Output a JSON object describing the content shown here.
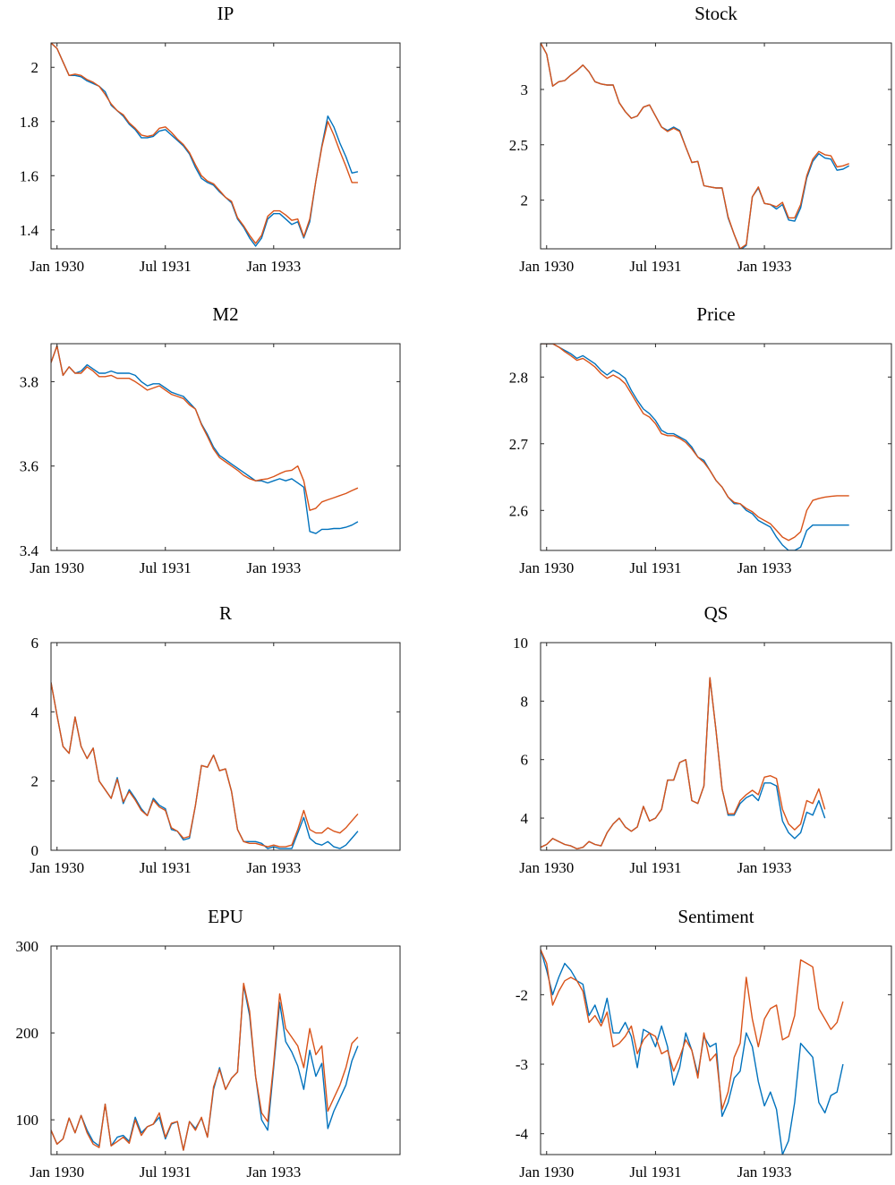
{
  "series_colors": {
    "series_1": "#0072BD",
    "series_2": "#D95319"
  },
  "chart_data": [
    {
      "type": "line",
      "title": "IP",
      "xlabel": "",
      "ylabel": "",
      "x_ticks": [
        "Jan 1930",
        "Jul 1931",
        "Jan 1933"
      ],
      "x_tick_index": [
        1,
        19,
        37
      ],
      "xlim": [
        0,
        58
      ],
      "ylim": [
        1.33,
        2.09
      ],
      "y_ticks": [
        "1.4",
        "1.6",
        "1.8",
        "2"
      ],
      "y_tick_values": [
        1.4,
        1.6,
        1.8,
        2.0
      ],
      "series": [
        {
          "values": [
            2.09,
            2.07,
            2.02,
            1.97,
            1.97,
            1.965,
            1.95,
            1.94,
            1.93,
            1.91,
            1.86,
            1.84,
            1.82,
            1.79,
            1.77,
            1.74,
            1.74,
            1.745,
            1.765,
            1.77,
            1.75,
            1.73,
            1.71,
            1.68,
            1.63,
            1.59,
            1.575,
            1.565,
            1.54,
            1.52,
            1.5,
            1.44,
            1.41,
            1.37,
            1.34,
            1.37,
            1.44,
            1.46,
            1.46,
            1.44,
            1.42,
            1.43,
            1.37,
            1.43,
            1.58,
            1.71,
            1.82,
            1.78,
            1.72,
            1.67,
            1.61,
            1.615
          ]
        },
        {
          "values": [
            2.09,
            2.07,
            2.02,
            1.97,
            1.975,
            1.97,
            1.955,
            1.945,
            1.93,
            1.9,
            1.865,
            1.84,
            1.825,
            1.795,
            1.775,
            1.75,
            1.745,
            1.75,
            1.775,
            1.78,
            1.76,
            1.735,
            1.715,
            1.685,
            1.64,
            1.6,
            1.58,
            1.57,
            1.545,
            1.52,
            1.505,
            1.445,
            1.415,
            1.38,
            1.35,
            1.38,
            1.45,
            1.47,
            1.47,
            1.455,
            1.435,
            1.44,
            1.375,
            1.44,
            1.58,
            1.705,
            1.8,
            1.75,
            1.69,
            1.635,
            1.575,
            1.575
          ]
        }
      ]
    },
    {
      "type": "line",
      "title": "Stock",
      "xlabel": "",
      "ylabel": "",
      "x_ticks": [
        "Jan 1930",
        "Jul 1931",
        "Jan 1933"
      ],
      "x_tick_index": [
        1,
        19,
        37
      ],
      "xlim": [
        0,
        58
      ],
      "ylim": [
        1.56,
        3.42
      ],
      "y_ticks": [
        "2",
        "2.5",
        "3"
      ],
      "y_tick_values": [
        2.0,
        2.5,
        3.0
      ],
      "series": [
        {
          "values": [
            3.42,
            3.32,
            3.03,
            3.07,
            3.08,
            3.13,
            3.17,
            3.22,
            3.16,
            3.07,
            3.05,
            3.04,
            3.04,
            2.88,
            2.8,
            2.74,
            2.76,
            2.84,
            2.86,
            2.76,
            2.66,
            2.63,
            2.66,
            2.63,
            2.48,
            2.34,
            2.35,
            2.13,
            2.12,
            2.11,
            2.11,
            1.84,
            1.69,
            1.55,
            1.59,
            2.03,
            2.11,
            1.97,
            1.96,
            1.92,
            1.96,
            1.82,
            1.81,
            1.93,
            2.2,
            2.35,
            2.42,
            2.38,
            2.37,
            2.27,
            2.28,
            2.31
          ]
        },
        {
          "values": [
            3.42,
            3.32,
            3.03,
            3.07,
            3.08,
            3.13,
            3.17,
            3.22,
            3.16,
            3.07,
            3.05,
            3.04,
            3.04,
            2.88,
            2.8,
            2.74,
            2.76,
            2.84,
            2.86,
            2.76,
            2.66,
            2.62,
            2.65,
            2.62,
            2.48,
            2.34,
            2.35,
            2.13,
            2.12,
            2.11,
            2.11,
            1.85,
            1.69,
            1.56,
            1.6,
            2.03,
            2.12,
            1.97,
            1.96,
            1.94,
            1.98,
            1.84,
            1.84,
            1.96,
            2.22,
            2.37,
            2.44,
            2.41,
            2.4,
            2.3,
            2.31,
            2.33
          ]
        }
      ]
    },
    {
      "type": "line",
      "title": "M2",
      "xlabel": "",
      "ylabel": "",
      "x_ticks": [
        "Jan 1930",
        "Jul 1931",
        "Jan 1933"
      ],
      "x_tick_index": [
        1,
        19,
        37
      ],
      "xlim": [
        0,
        58
      ],
      "ylim": [
        3.4,
        3.89
      ],
      "y_ticks": [
        "3.4",
        "3.6",
        "3.8"
      ],
      "y_tick_values": [
        3.4,
        3.6,
        3.8
      ],
      "series": [
        {
          "values": [
            3.845,
            3.885,
            3.815,
            3.835,
            3.82,
            3.825,
            3.84,
            3.83,
            3.82,
            3.82,
            3.825,
            3.82,
            3.82,
            3.82,
            3.815,
            3.8,
            3.79,
            3.795,
            3.795,
            3.785,
            3.775,
            3.77,
            3.765,
            3.75,
            3.735,
            3.7,
            3.675,
            3.645,
            3.625,
            3.615,
            3.605,
            3.595,
            3.585,
            3.575,
            3.565,
            3.565,
            3.56,
            3.565,
            3.57,
            3.565,
            3.57,
            3.56,
            3.55,
            3.445,
            3.44,
            3.45,
            3.45,
            3.452,
            3.452,
            3.455,
            3.46,
            3.468
          ]
        },
        {
          "values": [
            3.845,
            3.885,
            3.815,
            3.835,
            3.82,
            3.82,
            3.835,
            3.825,
            3.812,
            3.812,
            3.815,
            3.808,
            3.808,
            3.808,
            3.8,
            3.79,
            3.78,
            3.785,
            3.79,
            3.78,
            3.77,
            3.765,
            3.76,
            3.745,
            3.735,
            3.698,
            3.67,
            3.64,
            3.62,
            3.61,
            3.6,
            3.59,
            3.578,
            3.57,
            3.565,
            3.568,
            3.57,
            3.575,
            3.582,
            3.588,
            3.59,
            3.6,
            3.565,
            3.495,
            3.5,
            3.515,
            3.52,
            3.525,
            3.53,
            3.535,
            3.542,
            3.548
          ]
        }
      ]
    },
    {
      "type": "line",
      "title": "Price",
      "xlabel": "",
      "ylabel": "",
      "x_ticks": [
        "Jan 1930",
        "Jul 1931",
        "Jan 1933"
      ],
      "x_tick_index": [
        1,
        19,
        37
      ],
      "xlim": [
        0,
        58
      ],
      "ylim": [
        2.54,
        2.85
      ],
      "y_ticks": [
        "2.6",
        "2.7",
        "2.8"
      ],
      "y_tick_values": [
        2.6,
        2.7,
        2.8
      ],
      "series": [
        {
          "values": [
            2.85,
            2.85,
            2.85,
            2.845,
            2.84,
            2.835,
            2.828,
            2.832,
            2.826,
            2.82,
            2.81,
            2.803,
            2.81,
            2.805,
            2.798,
            2.78,
            2.765,
            2.752,
            2.745,
            2.735,
            2.72,
            2.715,
            2.715,
            2.71,
            2.705,
            2.695,
            2.68,
            2.675,
            2.66,
            2.645,
            2.635,
            2.62,
            2.61,
            2.61,
            2.6,
            2.595,
            2.585,
            2.58,
            2.575,
            2.56,
            2.548,
            2.54,
            2.54,
            2.545,
            2.57,
            2.578,
            2.578,
            2.578,
            2.578,
            2.578,
            2.578,
            2.578
          ]
        },
        {
          "values": [
            2.85,
            2.85,
            2.85,
            2.845,
            2.838,
            2.832,
            2.825,
            2.828,
            2.822,
            2.815,
            2.805,
            2.798,
            2.803,
            2.798,
            2.79,
            2.775,
            2.76,
            2.745,
            2.74,
            2.73,
            2.715,
            2.712,
            2.712,
            2.708,
            2.702,
            2.692,
            2.68,
            2.672,
            2.66,
            2.645,
            2.635,
            2.62,
            2.612,
            2.61,
            2.603,
            2.598,
            2.59,
            2.585,
            2.58,
            2.57,
            2.56,
            2.555,
            2.56,
            2.568,
            2.6,
            2.615,
            2.618,
            2.62,
            2.621,
            2.622,
            2.622,
            2.622
          ]
        }
      ]
    },
    {
      "type": "line",
      "title": "R",
      "xlabel": "",
      "ylabel": "",
      "x_ticks": [
        "Jan 1930",
        "Jul 1931",
        "Jan 1933"
      ],
      "x_tick_index": [
        1,
        19,
        37
      ],
      "xlim": [
        0,
        58
      ],
      "ylim": [
        0,
        6
      ],
      "y_ticks": [
        "0",
        "2",
        "4",
        "6"
      ],
      "y_tick_values": [
        0,
        2,
        4,
        6
      ],
      "series": [
        {
          "values": [
            4.85,
            3.9,
            3.0,
            2.8,
            3.85,
            3.0,
            2.65,
            2.95,
            2.0,
            1.75,
            1.5,
            2.1,
            1.35,
            1.75,
            1.5,
            1.2,
            1.0,
            1.5,
            1.3,
            1.2,
            0.6,
            0.55,
            0.3,
            0.35,
            1.3,
            2.45,
            2.4,
            2.75,
            2.3,
            2.35,
            1.7,
            0.6,
            0.25,
            0.25,
            0.25,
            0.2,
            0.05,
            0.1,
            0.05,
            0.05,
            0.05,
            0.5,
            0.95,
            0.35,
            0.2,
            0.15,
            0.25,
            0.1,
            0.05,
            0.15,
            0.35,
            0.55
          ]
        },
        {
          "values": [
            4.85,
            3.9,
            3.0,
            2.8,
            3.85,
            3.0,
            2.65,
            2.95,
            2.0,
            1.75,
            1.5,
            2.05,
            1.4,
            1.7,
            1.45,
            1.15,
            1.0,
            1.45,
            1.25,
            1.15,
            0.65,
            0.55,
            0.35,
            0.4,
            1.3,
            2.45,
            2.4,
            2.75,
            2.3,
            2.35,
            1.7,
            0.6,
            0.25,
            0.2,
            0.2,
            0.15,
            0.1,
            0.15,
            0.1,
            0.1,
            0.15,
            0.6,
            1.15,
            0.6,
            0.5,
            0.5,
            0.65,
            0.55,
            0.5,
            0.65,
            0.85,
            1.05
          ]
        }
      ]
    },
    {
      "type": "line",
      "title": "QS",
      "xlabel": "",
      "ylabel": "",
      "x_ticks": [
        "Jan 1930",
        "Jul 1931",
        "Jan 1933"
      ],
      "x_tick_index": [
        1,
        19,
        37
      ],
      "xlim": [
        0,
        58
      ],
      "ylim": [
        2.9,
        10
      ],
      "y_ticks": [
        "4",
        "6",
        "8",
        "10"
      ],
      "y_tick_values": [
        4,
        6,
        8,
        10
      ],
      "series": [
        {
          "values": [
            3.0,
            3.1,
            3.3,
            3.2,
            3.1,
            3.05,
            2.95,
            3.0,
            3.2,
            3.1,
            3.05,
            3.5,
            3.8,
            4.0,
            3.7,
            3.55,
            3.7,
            4.4,
            3.9,
            4.0,
            4.3,
            5.3,
            5.3,
            5.9,
            6.0,
            4.6,
            4.5,
            5.1,
            8.8,
            7.0,
            5.0,
            4.1,
            4.1,
            4.5,
            4.7,
            4.8,
            4.6,
            5.2,
            5.2,
            5.1,
            3.9,
            3.5,
            3.3,
            3.5,
            4.2,
            4.1,
            4.6,
            4.0
          ]
        },
        {
          "values": [
            3.0,
            3.1,
            3.3,
            3.2,
            3.1,
            3.05,
            2.95,
            3.0,
            3.2,
            3.1,
            3.05,
            3.5,
            3.8,
            4.0,
            3.7,
            3.55,
            3.7,
            4.4,
            3.9,
            4.0,
            4.3,
            5.3,
            5.3,
            5.9,
            6.0,
            4.6,
            4.5,
            5.1,
            8.8,
            7.0,
            5.0,
            4.15,
            4.15,
            4.6,
            4.8,
            4.95,
            4.8,
            5.4,
            5.45,
            5.35,
            4.3,
            3.8,
            3.6,
            3.8,
            4.6,
            4.5,
            5.0,
            4.3
          ]
        }
      ]
    },
    {
      "type": "line",
      "title": "EPU",
      "xlabel": "",
      "ylabel": "",
      "x_ticks": [
        "Jan 1930",
        "Jul 1931",
        "Jan 1933"
      ],
      "x_tick_index": [
        1,
        19,
        37
      ],
      "xlim": [
        0,
        58
      ],
      "ylim": [
        60,
        300
      ],
      "y_ticks": [
        "100",
        "200",
        "300"
      ],
      "y_tick_values": [
        100,
        200,
        300
      ],
      "series": [
        {
          "values": [
            88,
            72,
            78,
            102,
            85,
            105,
            88,
            75,
            70,
            118,
            70,
            80,
            82,
            75,
            103,
            85,
            92,
            95,
            103,
            78,
            95,
            98,
            65,
            98,
            90,
            102,
            80,
            135,
            160,
            135,
            148,
            155,
            255,
            220,
            150,
            100,
            88,
            160,
            235,
            190,
            178,
            162,
            135,
            180,
            150,
            165,
            90,
            110,
            125,
            140,
            168,
            185
          ]
        },
        {
          "values": [
            88,
            72,
            78,
            102,
            85,
            105,
            85,
            72,
            68,
            118,
            70,
            75,
            80,
            73,
            100,
            82,
            92,
            95,
            108,
            80,
            96,
            98,
            65,
            98,
            88,
            103,
            80,
            138,
            158,
            135,
            148,
            155,
            257,
            225,
            150,
            108,
            98,
            165,
            245,
            205,
            195,
            185,
            160,
            205,
            175,
            185,
            110,
            125,
            140,
            160,
            188,
            195
          ]
        }
      ]
    },
    {
      "type": "line",
      "title": "Sentiment",
      "xlabel": "",
      "ylabel": "",
      "x_ticks": [
        "Jan 1930",
        "Jul 1931",
        "Jan 1933"
      ],
      "x_tick_index": [
        1,
        19,
        37
      ],
      "xlim": [
        0,
        58
      ],
      "ylim": [
        -4.3,
        -1.3
      ],
      "y_ticks": [
        "-4",
        "-3",
        "-2"
      ],
      "y_tick_values": [
        -4,
        -3,
        -2
      ],
      "series": [
        {
          "values": [
            -1.35,
            -1.65,
            -2.0,
            -1.75,
            -1.55,
            -1.65,
            -1.8,
            -1.85,
            -2.3,
            -2.15,
            -2.4,
            -2.05,
            -2.55,
            -2.55,
            -2.4,
            -2.6,
            -3.05,
            -2.5,
            -2.55,
            -2.75,
            -2.45,
            -2.75,
            -3.3,
            -3.05,
            -2.55,
            -2.8,
            -3.15,
            -2.6,
            -2.75,
            -2.7,
            -3.75,
            -3.55,
            -3.2,
            -3.1,
            -2.55,
            -2.75,
            -3.25,
            -3.6,
            -3.4,
            -3.65,
            -4.3,
            -4.1,
            -3.55,
            -2.7,
            -2.8,
            -2.9,
            -3.55,
            -3.7,
            -3.45,
            -3.4,
            -3.0
          ]
        },
        {
          "values": [
            -1.35,
            -1.55,
            -2.15,
            -1.95,
            -1.8,
            -1.75,
            -1.8,
            -1.95,
            -2.4,
            -2.3,
            -2.45,
            -2.25,
            -2.75,
            -2.7,
            -2.6,
            -2.45,
            -2.85,
            -2.65,
            -2.55,
            -2.6,
            -2.85,
            -2.8,
            -3.1,
            -2.9,
            -2.65,
            -2.8,
            -3.2,
            -2.55,
            -2.95,
            -2.85,
            -3.65,
            -3.4,
            -2.9,
            -2.7,
            -1.75,
            -2.35,
            -2.75,
            -2.35,
            -2.2,
            -2.15,
            -2.65,
            -2.6,
            -2.3,
            -1.5,
            -1.55,
            -1.6,
            -2.2,
            -2.35,
            -2.5,
            -2.4,
            -2.1
          ]
        }
      ]
    }
  ]
}
